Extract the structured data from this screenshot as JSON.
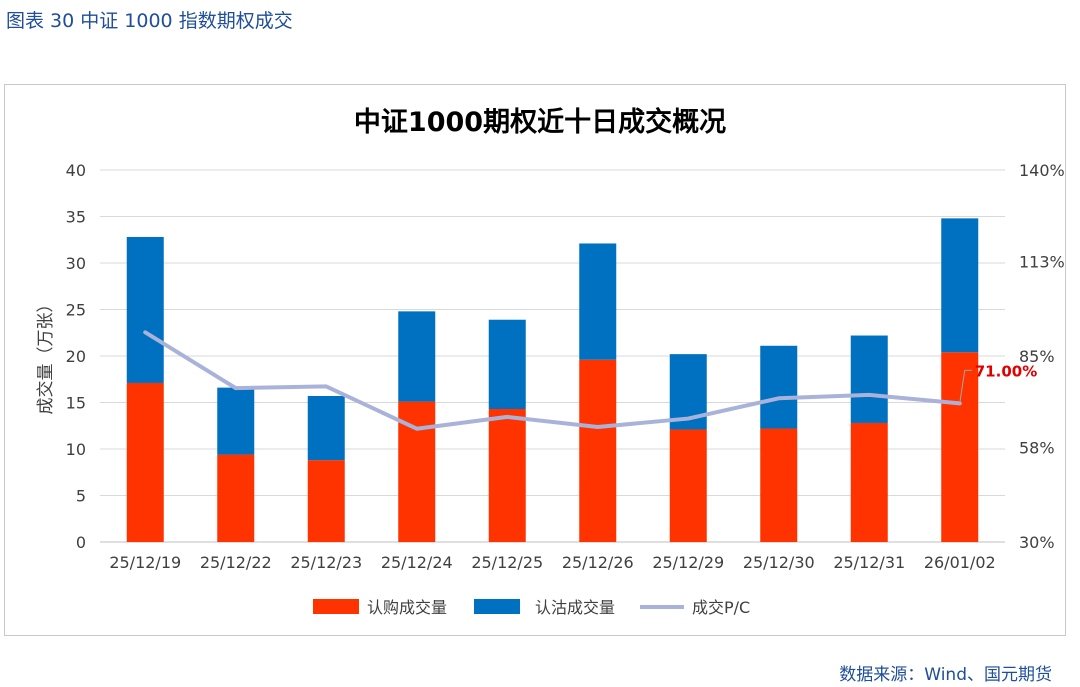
{
  "figure_label": "图表 30  中证 1000 指数期权成交",
  "source": "数据来源：Wind、国元期货",
  "colors": {
    "call": "#FF3300",
    "put": "#0070C0",
    "pc": "#A9B3D9",
    "annotation": "#E00000",
    "title_blue": "#1F4E9A"
  },
  "chart_data": {
    "type": "bar",
    "stacked": true,
    "title": "中证1000期权近十日成交概况",
    "xlabel": "",
    "ylabel": "成交量（万张）",
    "categories": [
      "25/12/19",
      "25/12/22",
      "25/12/23",
      "25/12/24",
      "25/12/25",
      "25/12/26",
      "25/12/29",
      "25/12/30",
      "25/12/31",
      "26/01/02"
    ],
    "series": [
      {
        "name": "认购成交量",
        "axis": "left",
        "values": [
          17.1,
          9.4,
          8.8,
          15.1,
          14.3,
          19.6,
          12.1,
          12.2,
          12.8,
          20.4
        ]
      },
      {
        "name": "认沽成交量",
        "axis": "left",
        "values": [
          15.7,
          7.2,
          6.9,
          9.7,
          9.6,
          12.5,
          8.1,
          8.9,
          9.4,
          14.4
        ]
      },
      {
        "name": "成交P/C",
        "type": "line",
        "axis": "right",
        "values": [
          92,
          75.5,
          76,
          63.5,
          67,
          64,
          66.5,
          72.5,
          73.5,
          71
        ]
      }
    ],
    "ylim": [
      0,
      40
    ],
    "yticks": [
      "0",
      "5",
      "10",
      "15",
      "20",
      "25",
      "30",
      "35",
      "40"
    ],
    "y2lim": [
      30,
      140
    ],
    "y2ticks": [
      "30%",
      "58%",
      "85%",
      "113%",
      "140%"
    ],
    "annotation": {
      "text": "71.00%",
      "index": 9
    },
    "legend": {
      "position": "bottom",
      "labels": [
        "认购成交量",
        "认沽成交量",
        "成交P/C"
      ]
    }
  }
}
